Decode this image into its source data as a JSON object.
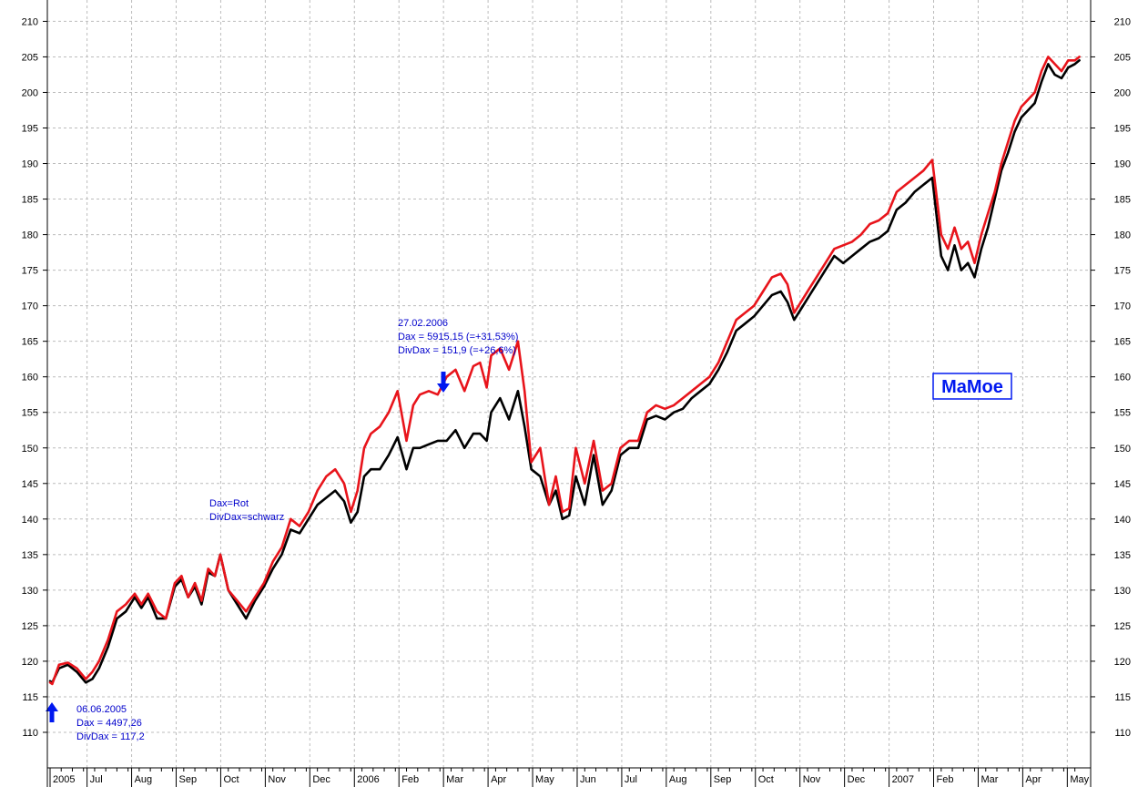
{
  "chart_data": {
    "type": "line",
    "title": "",
    "xlabel": "",
    "ylabel": "",
    "ylim": [
      105,
      213
    ],
    "y_ticks": [
      110,
      115,
      120,
      125,
      130,
      135,
      140,
      145,
      150,
      155,
      160,
      165,
      170,
      175,
      180,
      185,
      190,
      195,
      200,
      205,
      210
    ],
    "x_tick_labels": [
      "2005",
      "Jul",
      "Aug",
      "Sep",
      "Oct",
      "Nov",
      "Dec",
      "2006",
      "Feb",
      "Mar",
      "Apr",
      "May",
      "Jun",
      "Jul",
      "Aug",
      "Sep",
      "Oct",
      "Nov",
      "Dec",
      "2007",
      "Feb",
      "Mar",
      "Apr",
      "May"
    ],
    "x_tick_months": [
      0,
      0.83,
      1.83,
      2.83,
      3.83,
      4.83,
      5.83,
      6.83,
      7.83,
      8.83,
      9.83,
      10.83,
      11.83,
      12.83,
      13.83,
      14.83,
      15.83,
      16.83,
      17.83,
      18.83,
      19.83,
      20.83,
      21.83,
      22.83
    ],
    "x_range_months": [
      0,
      23.15
    ],
    "grid": true,
    "series": [
      {
        "name": "Dax",
        "color": "#e8141b",
        "x": [
          0,
          0.05,
          0.2,
          0.4,
          0.6,
          0.8,
          0.95,
          1.1,
          1.3,
          1.5,
          1.7,
          1.9,
          2.05,
          2.2,
          2.4,
          2.6,
          2.8,
          2.95,
          3.1,
          3.25,
          3.4,
          3.55,
          3.7,
          3.82,
          4.0,
          4.2,
          4.4,
          4.6,
          4.8,
          5.0,
          5.2,
          5.4,
          5.6,
          5.8,
          6.0,
          6.2,
          6.4,
          6.6,
          6.75,
          6.9,
          7.05,
          7.2,
          7.4,
          7.6,
          7.8,
          8.0,
          8.15,
          8.3,
          8.5,
          8.7,
          8.9,
          9.1,
          9.3,
          9.5,
          9.65,
          9.8,
          9.9,
          10.1,
          10.3,
          10.5,
          10.65,
          10.8,
          11.0,
          11.2,
          11.35,
          11.5,
          11.65,
          11.8,
          12.0,
          12.2,
          12.4,
          12.6,
          12.8,
          13.0,
          13.2,
          13.4,
          13.6,
          13.8,
          14.0,
          14.2,
          14.4,
          14.6,
          14.8,
          15.0,
          15.2,
          15.4,
          15.6,
          15.8,
          16.0,
          16.2,
          16.4,
          16.55,
          16.7,
          16.85,
          17.0,
          17.2,
          17.4,
          17.6,
          17.8,
          18.0,
          18.2,
          18.4,
          18.6,
          18.8,
          19.0,
          19.2,
          19.4,
          19.6,
          19.8,
          20.0,
          20.15,
          20.3,
          20.45,
          20.6,
          20.75,
          20.9,
          21.05,
          21.2,
          21.35,
          21.5,
          21.65,
          21.8,
          21.95,
          22.1,
          22.25,
          22.4,
          22.55,
          22.7,
          22.85,
          23.0,
          23.1
        ],
        "values": [
          117,
          116.8,
          119.5,
          119.8,
          119,
          117.5,
          118.5,
          120,
          123,
          127,
          128,
          129.5,
          128,
          129.5,
          127,
          126,
          131,
          132,
          129,
          131,
          128.5,
          133,
          132,
          135,
          130,
          128.5,
          127,
          129,
          131,
          134,
          136,
          140,
          139,
          141,
          144,
          146,
          147,
          145,
          141,
          144,
          150,
          152,
          153,
          155,
          158,
          151,
          156,
          157.5,
          158,
          157.5,
          160,
          161,
          158,
          161.5,
          162,
          158.5,
          163,
          164,
          161,
          165,
          158,
          148,
          150,
          142,
          146,
          141,
          141.5,
          150,
          145,
          151,
          144,
          145,
          150,
          151,
          151,
          155,
          156,
          155.5,
          156,
          157,
          158,
          159,
          160,
          162,
          165,
          168,
          169,
          170,
          172,
          174,
          174.5,
          173,
          169,
          170.5,
          172,
          174,
          176,
          178,
          178.5,
          179,
          180,
          181.5,
          182,
          183,
          186,
          187,
          188,
          189,
          190.5,
          180,
          178,
          181,
          178,
          179,
          176,
          180,
          183,
          186,
          190,
          193,
          196,
          198,
          199,
          200,
          203,
          205,
          204,
          203,
          204.5,
          204.5,
          205
        ]
      },
      {
        "name": "DivDax",
        "color": "#000000",
        "x": [
          0,
          0.05,
          0.2,
          0.4,
          0.6,
          0.8,
          0.95,
          1.1,
          1.3,
          1.5,
          1.7,
          1.9,
          2.05,
          2.2,
          2.4,
          2.6,
          2.8,
          2.95,
          3.1,
          3.25,
          3.4,
          3.55,
          3.7,
          3.82,
          4.0,
          4.2,
          4.4,
          4.6,
          4.8,
          5.0,
          5.2,
          5.4,
          5.6,
          5.8,
          6.0,
          6.2,
          6.4,
          6.6,
          6.75,
          6.9,
          7.05,
          7.2,
          7.4,
          7.6,
          7.8,
          8.0,
          8.15,
          8.3,
          8.5,
          8.7,
          8.9,
          9.1,
          9.3,
          9.5,
          9.65,
          9.8,
          9.9,
          10.1,
          10.3,
          10.5,
          10.65,
          10.8,
          11.0,
          11.2,
          11.35,
          11.5,
          11.65,
          11.8,
          12.0,
          12.2,
          12.4,
          12.6,
          12.8,
          13.0,
          13.2,
          13.4,
          13.6,
          13.8,
          14.0,
          14.2,
          14.4,
          14.6,
          14.8,
          15.0,
          15.2,
          15.4,
          15.6,
          15.8,
          16.0,
          16.2,
          16.4,
          16.55,
          16.7,
          16.85,
          17.0,
          17.2,
          17.4,
          17.6,
          17.8,
          18.0,
          18.2,
          18.4,
          18.6,
          18.8,
          19.0,
          19.2,
          19.4,
          19.6,
          19.8,
          20.0,
          20.15,
          20.3,
          20.45,
          20.6,
          20.75,
          20.9,
          21.05,
          21.2,
          21.35,
          21.5,
          21.65,
          21.8,
          21.95,
          22.1,
          22.25,
          22.4,
          22.55,
          22.7,
          22.85,
          23.0,
          23.1
        ],
        "values": [
          117.2,
          117,
          119,
          119.5,
          118.5,
          117,
          117.5,
          119,
          122,
          126,
          127,
          129,
          127.5,
          129,
          126,
          126,
          130.5,
          131.5,
          129,
          130.5,
          128,
          132.5,
          132,
          135,
          130,
          128,
          126,
          128.5,
          130.5,
          133,
          135,
          138.5,
          138,
          140,
          142,
          143,
          144,
          142.5,
          139.5,
          141,
          146,
          147,
          147,
          149,
          151.5,
          147,
          150,
          150,
          150.5,
          151,
          151,
          152.5,
          150,
          152,
          152,
          151,
          155,
          157,
          154,
          158,
          153,
          147,
          146,
          142,
          144,
          140,
          140.5,
          146,
          142,
          149,
          142,
          144,
          149,
          150,
          150,
          154,
          154.5,
          154,
          155,
          155.5,
          157,
          158,
          159,
          161,
          163.5,
          166.5,
          167.5,
          168.5,
          170,
          171.5,
          172,
          170.5,
          168,
          169.5,
          171,
          173,
          175,
          177,
          176,
          177,
          178,
          179,
          179.5,
          180.5,
          183.5,
          184.5,
          186,
          187,
          188,
          177,
          175,
          178.5,
          175,
          176,
          174,
          178,
          181,
          185,
          189,
          191.5,
          194.5,
          196.5,
          197.5,
          198.5,
          201.5,
          204,
          202.5,
          202,
          203.5,
          204,
          204.5
        ]
      }
    ],
    "annotations": [
      {
        "lines": [
          "06.06.2005",
          "Dax = 4497,26",
          "DivDax = 117,2"
        ],
        "color": "#0000cc",
        "arrow": "up"
      },
      {
        "lines": [
          "27.02.2006",
          "Dax = 5915,15 (=+31,53%)",
          "DivDax = 151,9 (=+26,6%)"
        ],
        "color": "#0000cc",
        "arrow": "down"
      },
      {
        "lines": [
          "Dax=Rot",
          "DivDax=schwarz"
        ],
        "color": "#0000cc"
      }
    ],
    "watermark": "MaMoe"
  }
}
